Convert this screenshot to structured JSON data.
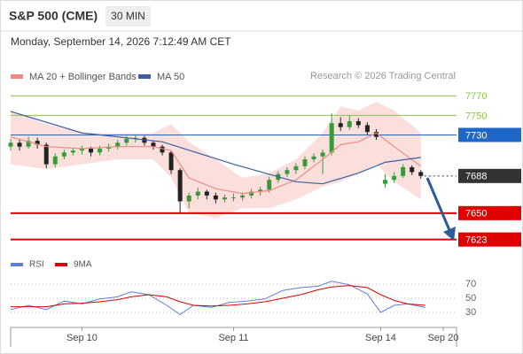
{
  "header": {
    "title": "S&P 500 (CME)",
    "timeframe": "30 MIN",
    "datetime": "Monday, September 14, 2026 7:12:49 AM CET"
  },
  "chart_data": [
    {
      "type": "candlestick",
      "credit": "Research © 2026 Trading Central",
      "xlim": [
        0,
        100
      ],
      "ylim": [
        7610,
        7782
      ],
      "up_color": "#3a9a3a",
      "down_color": "#222222",
      "x": [
        0,
        2,
        4,
        6,
        8,
        10,
        12,
        14,
        16,
        18,
        20,
        22,
        24,
        26,
        28,
        30,
        32,
        34,
        36,
        38,
        40,
        42,
        44,
        46,
        48,
        50,
        52,
        54,
        56,
        58,
        60,
        62,
        64,
        66,
        68,
        70,
        72,
        74,
        76,
        78,
        80,
        82,
        84,
        86,
        88,
        90,
        92
      ],
      "ohlc": [
        [
          7718,
          7726,
          7714,
          7722
        ],
        [
          7722,
          7725,
          7714,
          7718
        ],
        [
          7718,
          7728,
          7716,
          7724
        ],
        [
          7724,
          7727,
          7716,
          7720
        ],
        [
          7720,
          7722,
          7696,
          7700
        ],
        [
          7700,
          7711,
          7697,
          7708
        ],
        [
          7708,
          7715,
          7705,
          7712
        ],
        [
          7712,
          7717,
          7709,
          7714
        ],
        [
          7714,
          7719,
          7710,
          7716
        ],
        [
          7716,
          7718,
          7708,
          7712
        ],
        [
          7712,
          7719,
          7709,
          7716
        ],
        [
          7716,
          7721,
          7713,
          7718
        ],
        [
          7718,
          7725,
          7715,
          7722
        ],
        [
          7722,
          7729,
          7719,
          7726
        ],
        [
          7726,
          7730,
          7722,
          7727
        ],
        [
          7727,
          7729,
          7719,
          7722
        ],
        [
          7722,
          7724,
          7715,
          7718
        ],
        [
          7718,
          7720,
          7709,
          7712
        ],
        [
          7712,
          7714,
          7690,
          7694
        ],
        [
          7694,
          7696,
          7650,
          7662
        ],
        [
          7662,
          7671,
          7655,
          7668
        ],
        [
          7668,
          7676,
          7664,
          7672
        ],
        [
          7672,
          7674,
          7664,
          7668
        ],
        [
          7668,
          7671,
          7660,
          7664
        ],
        [
          7664,
          7669,
          7661,
          7666
        ],
        [
          7666,
          7670,
          7662,
          7666
        ],
        [
          7666,
          7671,
          7663,
          7668
        ],
        [
          7668,
          7675,
          7665,
          7672
        ],
        [
          7672,
          7677,
          7668,
          7674
        ],
        [
          7674,
          7687,
          7671,
          7684
        ],
        [
          7684,
          7693,
          7681,
          7690
        ],
        [
          7690,
          7697,
          7687,
          7694
        ],
        [
          7694,
          7701,
          7690,
          7698
        ],
        [
          7698,
          7708,
          7695,
          7705
        ],
        [
          7705,
          7711,
          7702,
          7708
        ],
        [
          7708,
          7715,
          7690,
          7712
        ],
        [
          7712,
          7752,
          7709,
          7742
        ],
        [
          7742,
          7748,
          7734,
          7738
        ],
        [
          7738,
          7750,
          7735,
          7744
        ],
        [
          7744,
          7747,
          7737,
          7740
        ],
        [
          7740,
          7743,
          7730,
          7733
        ],
        [
          7733,
          7736,
          7725,
          7728
        ],
        [
          7680,
          7690,
          7676,
          7684
        ],
        [
          7684,
          7692,
          7681,
          7688
        ],
        [
          7688,
          7700,
          7686,
          7697
        ],
        [
          7697,
          7699,
          7689,
          7692
        ],
        [
          7692,
          7694,
          7685,
          7688
        ]
      ],
      "band": {
        "color": "#f9c9c6",
        "x": [
          0,
          8,
          16,
          24,
          32,
          36,
          40,
          46,
          52,
          58,
          64,
          70,
          74,
          78,
          82,
          86,
          92
        ],
        "upper": [
          7755,
          7741,
          7732,
          7732,
          7732,
          7741,
          7723,
          7705,
          7686,
          7691,
          7705,
          7732,
          7759,
          7755,
          7764,
          7755,
          7732
        ],
        "lower": [
          7700,
          7695,
          7700,
          7705,
          7705,
          7686,
          7650,
          7645,
          7655,
          7655,
          7664,
          7677,
          7682,
          7691,
          7700,
          7682,
          7664
        ]
      },
      "series": [
        {
          "name": "MA 20 + Bollinger Bands",
          "color": "#f08a84",
          "x": [
            0,
            8,
            16,
            24,
            32,
            36,
            40,
            46,
            52,
            58,
            64,
            70,
            74,
            78,
            82,
            86,
            92
          ],
          "values": [
            7728,
            7718,
            7716,
            7718,
            7718,
            7714,
            7686,
            7675,
            7670,
            7673,
            7684,
            7705,
            7720,
            7723,
            7732,
            7718,
            7698
          ]
        },
        {
          "name": "MA 50",
          "color": "#3b5fa0",
          "x": [
            0,
            16,
            34,
            50,
            64,
            70,
            78,
            84,
            92
          ],
          "values": [
            7754,
            7732,
            7723,
            7700,
            7682,
            7680,
            7691,
            7702,
            7707
          ]
        }
      ],
      "levels": [
        {
          "value": 7770,
          "color": "#8bc34a",
          "boxed": false,
          "line": "solid"
        },
        {
          "value": 7750,
          "color": "#8bc34a",
          "boxed": false,
          "line": "solid"
        },
        {
          "value": 7730,
          "color": "#1e66c8",
          "boxed": true,
          "line": "solid"
        },
        {
          "value": 7688,
          "color": "#333333",
          "boxed": true,
          "line": "dotted"
        },
        {
          "value": 7650,
          "color": "#e00000",
          "boxed": true,
          "line": "solid"
        },
        {
          "value": 7623,
          "color": "#e00000",
          "boxed": true,
          "line": "solid"
        }
      ]
    },
    {
      "type": "line",
      "xlim": [
        0,
        100
      ],
      "ylim": [
        15,
        85
      ],
      "yticks": [
        30,
        50,
        70
      ],
      "xticks": [
        {
          "value": 16,
          "label": "Sep 10"
        },
        {
          "value": 50,
          "label": "Sep 11"
        },
        {
          "value": 83,
          "label": "Sep 14"
        },
        {
          "value": 97,
          "label": "Sep 20"
        }
      ],
      "series": [
        {
          "name": "RSI",
          "color": "#5b7fd6",
          "x": [
            0,
            4,
            8,
            12,
            16,
            20,
            24,
            27,
            31,
            35,
            38,
            41,
            45,
            49,
            53,
            57,
            61,
            65,
            69,
            72,
            76,
            80,
            83,
            86,
            89,
            93
          ],
          "values": [
            34,
            40,
            34,
            46,
            42,
            49,
            52,
            59,
            55,
            40,
            27,
            40,
            37,
            44,
            46,
            49,
            61,
            65,
            67,
            74,
            69,
            56,
            30,
            40,
            42,
            37
          ]
        },
        {
          "name": "9MA",
          "color": "#e00000",
          "x": [
            0,
            4,
            8,
            12,
            16,
            20,
            24,
            27,
            31,
            35,
            38,
            41,
            45,
            49,
            53,
            57,
            61,
            65,
            69,
            72,
            76,
            80,
            83,
            86,
            89,
            93
          ],
          "values": [
            38,
            38,
            38,
            42,
            43,
            45,
            48,
            52,
            55,
            52,
            45,
            40,
            39,
            40,
            42,
            45,
            50,
            55,
            62,
            66,
            68,
            65,
            55,
            47,
            42,
            40
          ]
        }
      ]
    }
  ]
}
